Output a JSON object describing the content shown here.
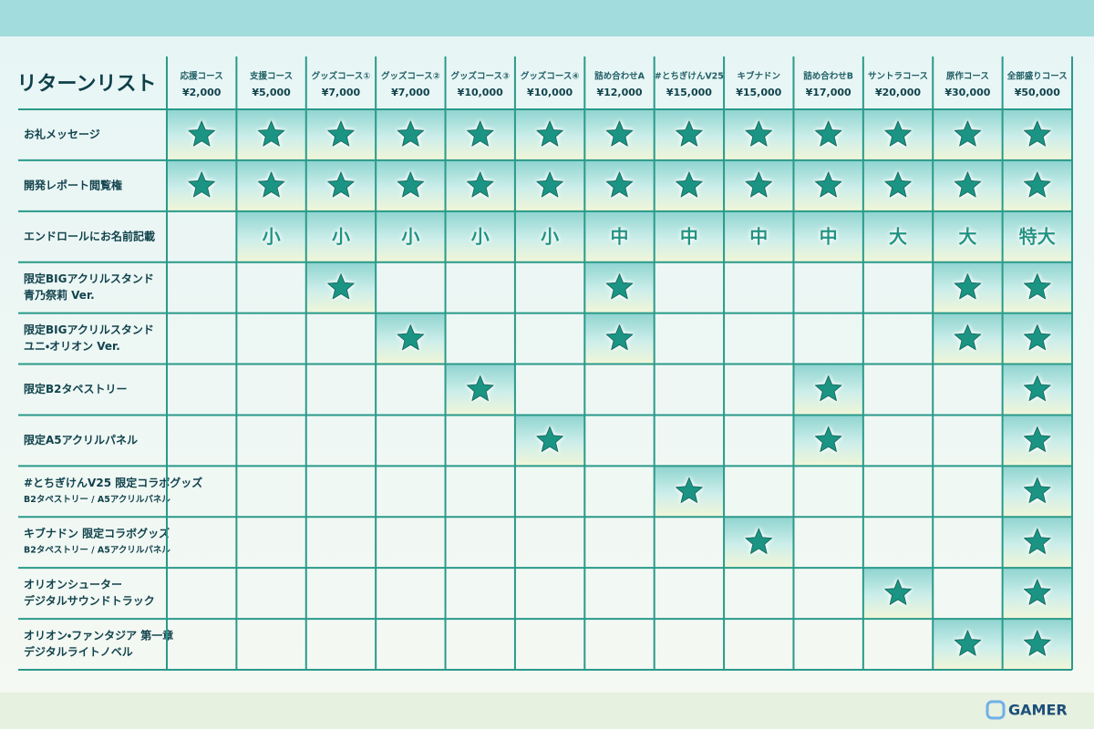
{
  "title": "リターンリスト",
  "logo": "GAMER",
  "table": {
    "columns": [
      {
        "name": "応援コース",
        "price": "¥2,000"
      },
      {
        "name": "支援コース",
        "price": "¥5,000"
      },
      {
        "name": "グッズコース①",
        "price": "¥7,000"
      },
      {
        "name": "グッズコース②",
        "price": "¥7,000"
      },
      {
        "name": "グッズコース③",
        "price": "¥10,000"
      },
      {
        "name": "グッズコース④",
        "price": "¥10,000"
      },
      {
        "name": "詰め合わせA",
        "price": "¥12,000"
      },
      {
        "name": "#とちぎけんV25",
        "price": "¥15,000"
      },
      {
        "name": "キブナドン",
        "price": "¥15,000"
      },
      {
        "name": "詰め合わせB",
        "price": "¥17,000"
      },
      {
        "name": "サントラコース",
        "price": "¥20,000"
      },
      {
        "name": "原作コース",
        "price": "¥30,000"
      },
      {
        "name": "全部盛りコース",
        "price": "¥50,000"
      }
    ],
    "rows": [
      {
        "label": [
          "お礼メッセージ"
        ],
        "cells": [
          true,
          true,
          true,
          true,
          true,
          true,
          true,
          true,
          true,
          true,
          true,
          true,
          true
        ]
      },
      {
        "label": [
          "開発レポート閲覧権"
        ],
        "cells": [
          true,
          true,
          true,
          true,
          true,
          true,
          true,
          true,
          true,
          true,
          true,
          true,
          true
        ]
      },
      {
        "label": [
          "エンドロールにお名前記載"
        ],
        "cells": [
          null,
          "小",
          "小",
          "小",
          "小",
          "小",
          "中",
          "中",
          "中",
          "中",
          "大",
          "大",
          "特大"
        ]
      },
      {
        "label": [
          "限定BIGアクリルスタンド",
          "青乃祭莉 Ver."
        ],
        "cells": [
          null,
          null,
          true,
          null,
          null,
          null,
          true,
          null,
          null,
          null,
          null,
          true,
          true
        ]
      },
      {
        "label": [
          "限定BIGアクリルスタンド",
          "ユニ・オリオン Ver."
        ],
        "cells": [
          null,
          null,
          null,
          true,
          null,
          null,
          true,
          null,
          null,
          null,
          null,
          true,
          true
        ]
      },
      {
        "label": [
          "限定B2タペストリー"
        ],
        "cells": [
          null,
          null,
          null,
          null,
          true,
          null,
          null,
          null,
          null,
          true,
          null,
          null,
          true
        ]
      },
      {
        "label": [
          "限定A5アクリルパネル"
        ],
        "cells": [
          null,
          null,
          null,
          null,
          null,
          true,
          null,
          null,
          null,
          true,
          null,
          null,
          true
        ]
      },
      {
        "label": [
          "#とちぎけんV25 限定コラボグッズ",
          "B2タペストリー / A5アクリルパネル"
        ],
        "cells": [
          null,
          null,
          null,
          null,
          null,
          null,
          null,
          true,
          null,
          null,
          null,
          null,
          true
        ]
      },
      {
        "label": [
          "キブナドン 限定コラボグッズ",
          "B2タペストリー / A5アクリルパネル"
        ],
        "cells": [
          null,
          null,
          null,
          null,
          null,
          null,
          null,
          null,
          true,
          null,
          null,
          null,
          true
        ]
      },
      {
        "label": [
          "オリオンシューター",
          "デジタルサウンドトラック"
        ],
        "cells": [
          null,
          null,
          null,
          null,
          null,
          null,
          null,
          null,
          null,
          null,
          true,
          null,
          true
        ]
      },
      {
        "label": [
          "オリオン・ファンタジア 第一章",
          "デジタルライトノベル"
        ],
        "cells": [
          null,
          null,
          null,
          null,
          null,
          null,
          null,
          null,
          null,
          null,
          null,
          true,
          true
        ]
      }
    ]
  }
}
